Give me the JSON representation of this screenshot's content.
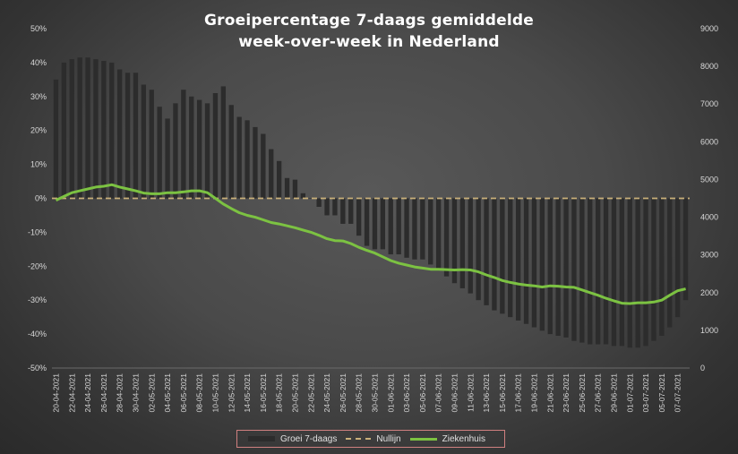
{
  "chart_data": {
    "type": "bar+line",
    "title": "Groeipercentage 7-daags gemiddelde",
    "subtitle": "week-over-week in Nederland",
    "y_left": {
      "ticks": [
        "50%",
        "40%",
        "30%",
        "20%",
        "10%",
        "0%",
        "-10%",
        "-20%",
        "-30%",
        "-40%",
        "-50%"
      ],
      "ylim": [
        -50,
        50
      ]
    },
    "y_right": {
      "ticks": [
        "9000",
        "8000",
        "7000",
        "6000",
        "5000",
        "4000",
        "3000",
        "2000",
        "1000",
        "0"
      ],
      "ylim": [
        0,
        9000
      ]
    },
    "x_tick_labels": [
      "20-04-2021",
      "22-04-2021",
      "24-04-2021",
      "26-04-2021",
      "28-04-2021",
      "30-04-2021",
      "02-05-2021",
      "04-05-2021",
      "06-05-2021",
      "08-05-2021",
      "10-05-2021",
      "12-05-2021",
      "14-05-2021",
      "16-05-2021",
      "18-05-2021",
      "20-05-2021",
      "22-05-2021",
      "24-05-2021",
      "26-05-2021",
      "28-05-2021",
      "30-05-2021",
      "01-06-2021",
      "03-06-2021",
      "05-06-2021",
      "07-06-2021",
      "09-06-2021",
      "11-06-2021",
      "13-06-2021",
      "15-06-2021",
      "17-06-2021",
      "19-06-2021",
      "21-06-2021",
      "23-06-2021",
      "25-06-2021",
      "27-06-2021",
      "29-06-2021",
      "01-07-2021",
      "03-07-2021",
      "05-07-2021",
      "07-07-2021"
    ],
    "x_start": "20-04-2021",
    "legend": {
      "position": "bottom",
      "items": [
        "Groei 7-daags",
        "Nullijn",
        "Ziekenhuis"
      ]
    },
    "colors": {
      "bars": "#2c2c2c",
      "nullijn": "#c9b07a",
      "ziekenhuis": "#7cc242"
    },
    "series": [
      {
        "name": "Groei 7-daags",
        "axis": "left",
        "type": "bar",
        "values": [
          35,
          40,
          41,
          41.5,
          41.5,
          41,
          40.5,
          40,
          38,
          37,
          37,
          33.5,
          32,
          27,
          23.5,
          28,
          32,
          30,
          29,
          28,
          31,
          33,
          27.5,
          24,
          23,
          21,
          19,
          14.5,
          11,
          6,
          5.5,
          1.5,
          0,
          -2.5,
          -5,
          -5,
          -7.5,
          -7.5,
          -11,
          -14,
          -15,
          -15,
          -16.5,
          -16.5,
          -17.5,
          -18,
          -18,
          -19.5,
          -21,
          -23,
          -25,
          -26.5,
          -28,
          -30,
          -31.5,
          -33,
          -34,
          -35,
          -36,
          -37,
          -38,
          -39,
          -40,
          -40.5,
          -41,
          -42,
          -42.5,
          -43,
          -43,
          -43,
          -43.5,
          -43.5,
          -44,
          -44,
          -43.5,
          -42,
          -40.5,
          -38,
          -35,
          -30
        ]
      },
      {
        "name": "Nullijn",
        "axis": "left",
        "type": "line",
        "values": [
          0,
          0
        ]
      },
      {
        "name": "Ziekenhuis",
        "axis": "right",
        "type": "line",
        "values": [
          4450,
          4550,
          4650,
          4700,
          4750,
          4800,
          4820,
          4860,
          4800,
          4750,
          4700,
          4640,
          4620,
          4620,
          4650,
          4650,
          4670,
          4700,
          4700,
          4650,
          4500,
          4350,
          4230,
          4120,
          4050,
          4000,
          3930,
          3860,
          3820,
          3770,
          3720,
          3660,
          3600,
          3520,
          3430,
          3380,
          3370,
          3300,
          3200,
          3120,
          3050,
          2950,
          2850,
          2780,
          2730,
          2680,
          2650,
          2620,
          2620,
          2610,
          2600,
          2610,
          2600,
          2550,
          2470,
          2400,
          2320,
          2270,
          2230,
          2200,
          2180,
          2150,
          2180,
          2170,
          2150,
          2140,
          2070,
          2000,
          1930,
          1850,
          1780,
          1720,
          1710,
          1730,
          1730,
          1750,
          1800,
          1930,
          2050,
          2100
        ]
      }
    ]
  }
}
